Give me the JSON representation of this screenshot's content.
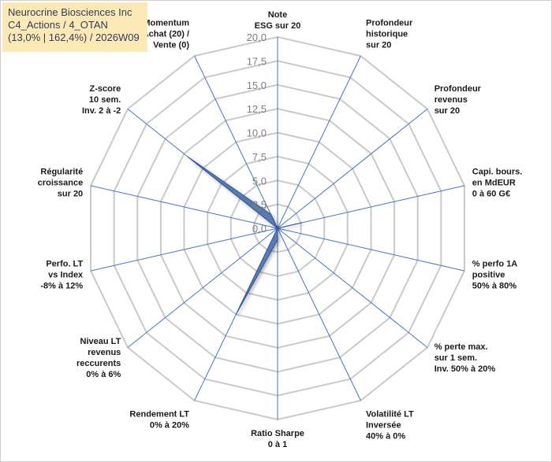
{
  "title": {
    "line1": "Neurocrine Biosciences Inc",
    "line2": "C4_Actions / 4_OTAN",
    "line3": "(13,0% | 162,4%) / 2026W09"
  },
  "chart_data": {
    "type": "radar",
    "rmin": 0,
    "rmax": 20,
    "ticks": [
      "0,0",
      "2,5",
      "5,0",
      "7,5",
      "10,0",
      "12,5",
      "15,0",
      "17,5",
      "20,0"
    ],
    "axes": [
      {
        "lines": [
          "Note",
          "ESG sur 20"
        ]
      },
      {
        "lines": [
          "Profondeur",
          "historique",
          "sur 20"
        ]
      },
      {
        "lines": [
          "Profondeur",
          "revenus",
          "sur 20"
        ]
      },
      {
        "lines": [
          "Capi. bours.",
          "en MdEUR",
          "0 à 60 G€"
        ]
      },
      {
        "lines": [
          "% perfo 1A",
          "positive",
          "50% à 80%"
        ]
      },
      {
        "lines": [
          "% perte max.",
          "sur 1 sem.",
          "Inv. 50% à 20%"
        ]
      },
      {
        "lines": [
          "Volatilité LT",
          "Inversée",
          "40% à 0%"
        ]
      },
      {
        "lines": [
          "Ratio Sharpe",
          "0 à 1"
        ]
      },
      {
        "lines": [
          "Rendement LT",
          "0% à 20%"
        ]
      },
      {
        "lines": [
          "Niveau LT",
          "revenus",
          "reccurents",
          "0% à 6%"
        ]
      },
      {
        "lines": [
          "Perfo. LT",
          "vs Index",
          "-8% à 12%"
        ]
      },
      {
        "lines": [
          "Régularité",
          "croissance",
          "sur 20"
        ]
      },
      {
        "lines": [
          "Z-score",
          "10 sem.",
          "Inv. 2 à -2"
        ]
      },
      {
        "lines": [
          "Momentum",
          "Achat (20) /",
          "Vente (0)"
        ]
      }
    ],
    "series": [
      {
        "name": "Neurocrine Biosciences Inc",
        "values": [
          0,
          0,
          0,
          2.6,
          0,
          0,
          0,
          1.2,
          10,
          0,
          0,
          0,
          12,
          1.6
        ]
      }
    ],
    "colors": {
      "fill": "#4f74ad",
      "stroke": "#2f5597",
      "grid": "#c9c9c9",
      "spoke": "#4472c4"
    }
  }
}
